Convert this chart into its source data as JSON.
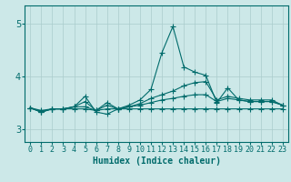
{
  "xlabel": "Humidex (Indice chaleur)",
  "xlim": [
    -0.5,
    23.5
  ],
  "ylim": [
    2.75,
    5.35
  ],
  "yticks": [
    3,
    4,
    5
  ],
  "xticks": [
    0,
    1,
    2,
    3,
    4,
    5,
    6,
    7,
    8,
    9,
    10,
    11,
    12,
    13,
    14,
    15,
    16,
    17,
    18,
    19,
    20,
    21,
    22,
    23
  ],
  "background_color": "#cce8e8",
  "grid_color": "#aacccc",
  "line_color": "#006b6b",
  "lines": [
    [
      3.4,
      3.35,
      3.38,
      3.38,
      3.42,
      3.62,
      3.32,
      3.28,
      3.38,
      3.45,
      3.55,
      3.75,
      4.45,
      4.95,
      4.18,
      4.08,
      4.02,
      3.5,
      3.78,
      3.55,
      3.52,
      3.52,
      3.52,
      3.45
    ],
    [
      3.4,
      3.32,
      3.38,
      3.38,
      3.42,
      3.52,
      3.35,
      3.5,
      3.38,
      3.42,
      3.48,
      3.58,
      3.65,
      3.72,
      3.82,
      3.88,
      3.9,
      3.55,
      3.62,
      3.58,
      3.55,
      3.55,
      3.55,
      3.45
    ],
    [
      3.4,
      3.32,
      3.38,
      3.38,
      3.42,
      3.42,
      3.35,
      3.45,
      3.38,
      3.42,
      3.45,
      3.5,
      3.55,
      3.58,
      3.62,
      3.65,
      3.65,
      3.52,
      3.58,
      3.55,
      3.52,
      3.52,
      3.52,
      3.45
    ],
    [
      3.4,
      3.32,
      3.38,
      3.38,
      3.38,
      3.38,
      3.35,
      3.38,
      3.38,
      3.38,
      3.38,
      3.38,
      3.38,
      3.38,
      3.38,
      3.38,
      3.38,
      3.38,
      3.38,
      3.38,
      3.38,
      3.38,
      3.38,
      3.38
    ]
  ],
  "marker": "+",
  "markersize": 4,
  "linewidth": 0.8,
  "tick_fontsize": 6,
  "xlabel_fontsize": 7
}
